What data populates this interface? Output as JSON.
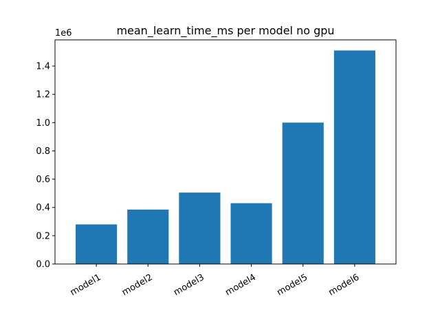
{
  "chart_data": {
    "type": "bar",
    "title": "mean_learn_time_ms per model no gpu",
    "xlabel": "",
    "ylabel": "",
    "y_offset_label": "1e6",
    "categories": [
      "model1",
      "model2",
      "model3",
      "model4",
      "model5",
      "model6"
    ],
    "values": [
      0.28,
      0.385,
      0.505,
      0.43,
      1.0,
      1.51
    ],
    "value_scale": 1000000,
    "ylim": [
      0,
      1.585
    ],
    "yticks": [
      "0.0",
      "0.2",
      "0.4",
      "0.6",
      "0.8",
      "1.0",
      "1.2",
      "1.4"
    ],
    "ytick_values": [
      0,
      0.2,
      0.4,
      0.6,
      0.8,
      1.0,
      1.2,
      1.4
    ],
    "bar_color": "#1f77b4",
    "grid": false
  }
}
